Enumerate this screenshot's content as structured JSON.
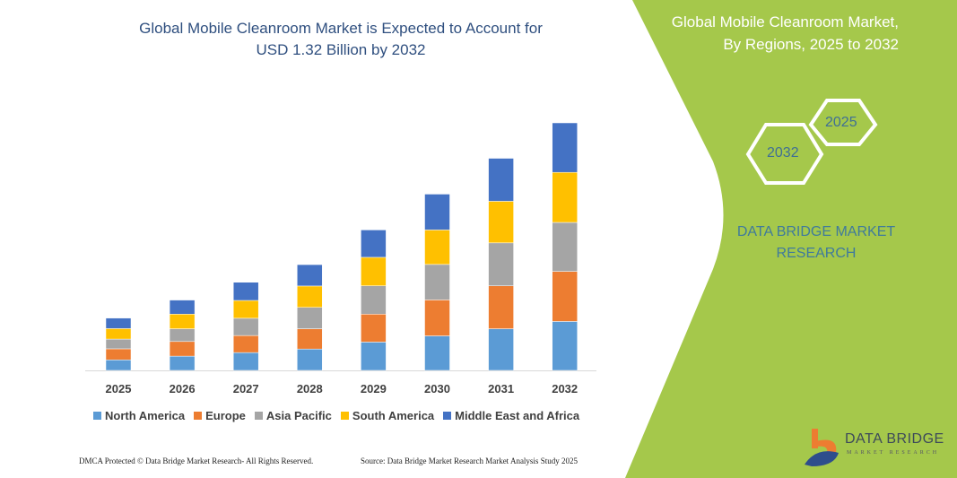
{
  "header": {
    "title_line1": "Global Mobile Cleanroom Market is Expected to Account for",
    "title_line2": "USD 1.32 Billion by 2032"
  },
  "panel": {
    "title_line1": "Global Mobile Cleanroom Market,",
    "title_line2": "By Regions, 2025 to 2032",
    "hex_start": "2025",
    "hex_end": "2032",
    "brand_line1": "DATA BRIDGE MARKET",
    "brand_line2": "RESEARCH",
    "color": "#a5c84b"
  },
  "logo": {
    "name": "DATA BRIDGE",
    "sub": "MARKET RESEARCH"
  },
  "footer": {
    "left": "DMCA Protected © Data Bridge Market Research- All Rights Reserved.",
    "right": "Source: Data Bridge Market Research Market Analysis Study 2025"
  },
  "chart_data": {
    "type": "bar",
    "stacked": true,
    "categories": [
      "2025",
      "2026",
      "2027",
      "2028",
      "2029",
      "2030",
      "2031",
      "2032"
    ],
    "ylim": [
      0,
      1.32
    ],
    "grid": false,
    "legend_position": "bottom",
    "series": [
      {
        "name": "North America",
        "color": "#5b9bd5",
        "values": [
          0.056,
          0.076,
          0.095,
          0.114,
          0.151,
          0.184,
          0.222,
          0.261
        ]
      },
      {
        "name": "Europe",
        "color": "#ed7d31",
        "values": [
          0.059,
          0.078,
          0.091,
          0.108,
          0.149,
          0.192,
          0.229,
          0.267
        ]
      },
      {
        "name": "Asia Pacific",
        "color": "#a5a5a5",
        "values": [
          0.052,
          0.068,
          0.092,
          0.114,
          0.151,
          0.189,
          0.229,
          0.261
        ]
      },
      {
        "name": "South America",
        "color": "#ffc000",
        "values": [
          0.056,
          0.078,
          0.095,
          0.114,
          0.152,
          0.184,
          0.222,
          0.267
        ]
      },
      {
        "name": "Middle East and Africa",
        "color": "#4472c4",
        "values": [
          0.056,
          0.075,
          0.097,
          0.114,
          0.146,
          0.191,
          0.229,
          0.264
        ]
      }
    ]
  }
}
